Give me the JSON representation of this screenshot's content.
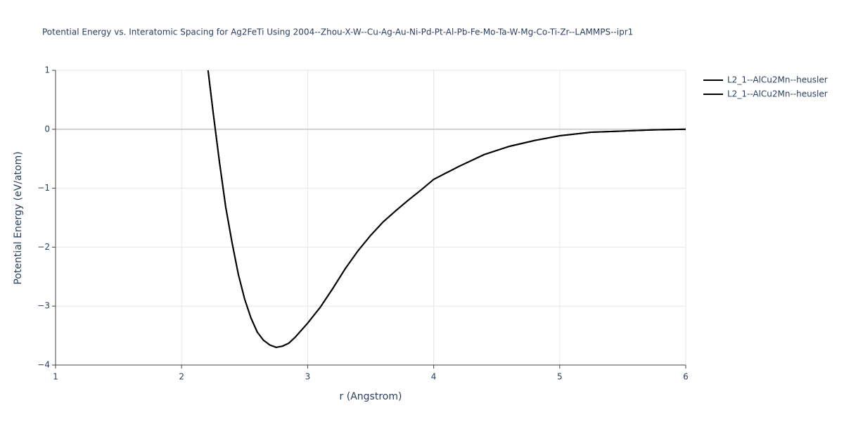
{
  "chart_data": {
    "type": "line",
    "title": "Potential Energy vs. Interatomic Spacing for Ag2FeTi Using 2004--Zhou-X-W--Cu-Ag-Au-Ni-Pd-Pt-Al-Pb-Fe-Mo-Ta-W-Mg-Co-Ti-Zr--LAMMPS--ipr1",
    "x_label": "r (Angstrom)",
    "y_label": "Potential Energy (eV/atom)",
    "x": [
      2.21,
      2.25,
      2.3,
      2.35,
      2.4,
      2.45,
      2.5,
      2.55,
      2.6,
      2.65,
      2.7,
      2.75,
      2.8,
      2.85,
      2.9,
      3.0,
      3.1,
      3.2,
      3.3,
      3.4,
      3.5,
      3.6,
      3.7,
      3.8,
      3.9,
      4.0,
      4.2,
      4.4,
      4.6,
      4.8,
      5.0,
      5.25,
      5.5,
      5.75,
      6.0
    ],
    "series": [
      {
        "name": "L2_1--AlCu2Mn--heusler",
        "color": "#000000",
        "values": [
          1,
          0.29,
          -0.55,
          -1.32,
          -1.92,
          -2.46,
          -2.88,
          -3.2,
          -3.44,
          -3.58,
          -3.66,
          -3.7,
          -3.68,
          -3.63,
          -3.53,
          -3.29,
          -3.02,
          -2.7,
          -2.36,
          -2.06,
          -1.8,
          -1.57,
          -1.38,
          -1.2,
          -1.03,
          -0.85,
          -0.63,
          -0.43,
          -0.29,
          -0.19,
          -0.11,
          -0.05,
          -0.03,
          -0.01,
          0
        ]
      },
      {
        "name": "L2_1--AlCu2Mn--heusler",
        "color": "#000000",
        "values": [
          1,
          0.29,
          -0.55,
          -1.32,
          -1.92,
          -2.46,
          -2.88,
          -3.2,
          -3.44,
          -3.58,
          -3.66,
          -3.7,
          -3.68,
          -3.63,
          -3.53,
          -3.29,
          -3.02,
          -2.7,
          -2.36,
          -2.06,
          -1.8,
          -1.57,
          -1.38,
          -1.2,
          -1.03,
          -0.85,
          -0.63,
          -0.43,
          -0.29,
          -0.19,
          -0.11,
          -0.05,
          -0.03,
          -0.01,
          0
        ]
      }
    ],
    "xlim": [
      1,
      6
    ],
    "xticks": [
      1,
      2,
      3,
      4,
      5,
      6
    ],
    "ylim": [
      -4,
      1
    ],
    "yticks": [
      {
        "value": -4,
        "label": "−4"
      },
      {
        "value": -3,
        "label": "−3"
      },
      {
        "value": -2,
        "label": "−2"
      },
      {
        "value": -1,
        "label": "−1"
      },
      0,
      1
    ],
    "grid": true,
    "legend": "right"
  }
}
